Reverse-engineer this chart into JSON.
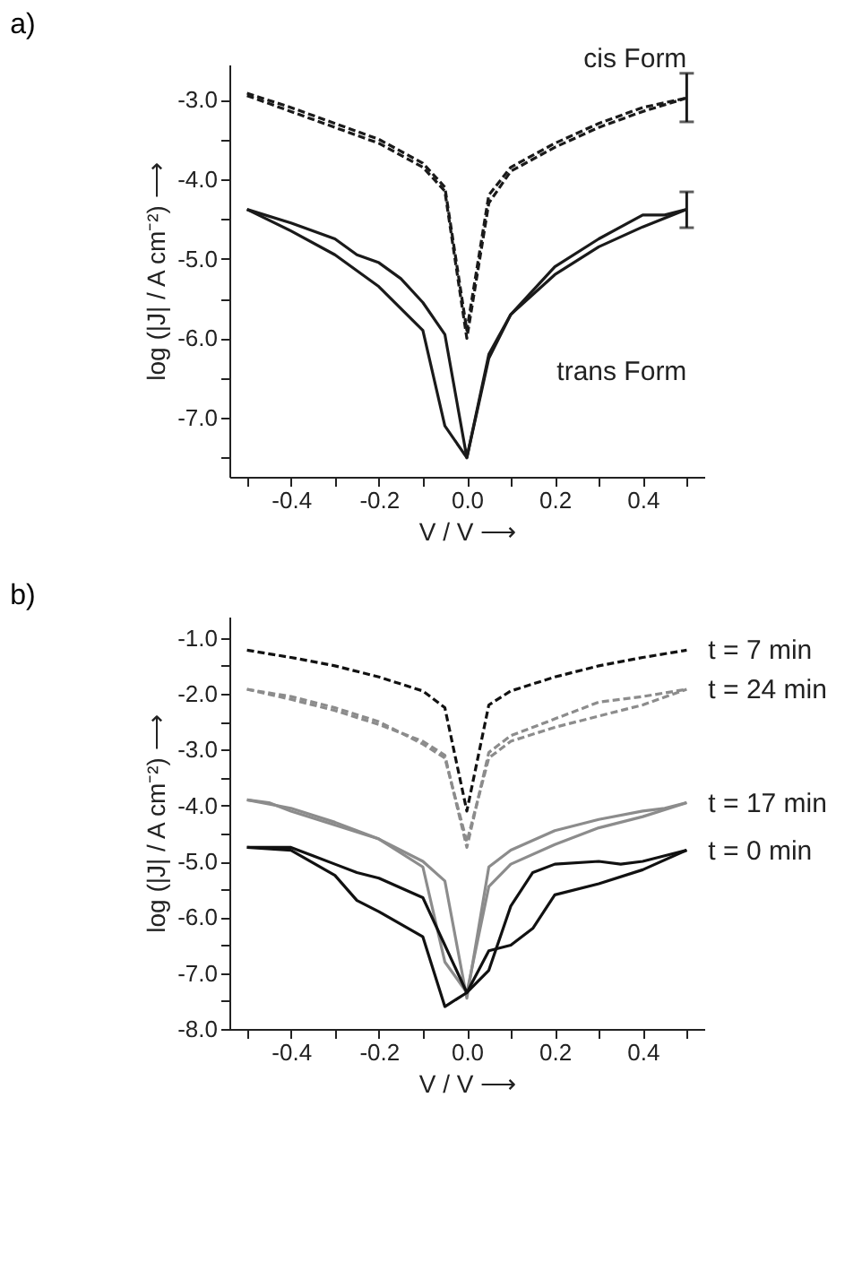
{
  "chart_data": [
    {
      "type": "line",
      "title": "a)",
      "xlabel": "V / V ⟶",
      "ylabel": "log (|J| / A cm⁻²) ⟶",
      "xlim": [
        -0.54,
        0.54
      ],
      "ylim": [
        -7.74,
        -2.56
      ],
      "grid": false,
      "marker": "none",
      "xticks": [
        {
          "value": -0.5,
          "label": null
        },
        -0.4,
        {
          "value": -0.3,
          "label": null
        },
        -0.2,
        {
          "value": -0.1,
          "label": null
        },
        {
          "value": 0,
          "label": "0.0"
        },
        {
          "value": 0.1,
          "label": null
        },
        0.2,
        {
          "value": 0.3,
          "label": null
        },
        0.4,
        {
          "value": 0.5,
          "label": null
        }
      ],
      "yticks": [
        {
          "value": -7.5,
          "label": null
        },
        {
          "value": -7.0,
          "label": "-7.0"
        },
        {
          "value": -6.5,
          "label": null
        },
        {
          "value": -6.0,
          "label": "-6.0"
        },
        {
          "value": -5.5,
          "label": null
        },
        {
          "value": -5.0,
          "label": "-5.0"
        },
        {
          "value": -4.5,
          "label": null
        },
        {
          "value": -4.0,
          "label": "-4.0"
        },
        {
          "value": -3.5,
          "label": null
        },
        {
          "value": -3.0,
          "label": "-3.0"
        }
      ],
      "series": [
        {
          "name": "cis Form",
          "color": "#1a1a1a",
          "line_style": "dashed",
          "x": [
            -0.5,
            -0.4,
            -0.3,
            -0.2,
            -0.1,
            -0.05,
            0,
            0.05,
            0.1,
            0.2,
            0.3,
            0.4,
            0.5
          ],
          "values": [
            -2.92,
            -3.1,
            -3.3,
            -3.5,
            -3.8,
            -4.1,
            -5.9,
            -4.2,
            -3.85,
            -3.55,
            -3.3,
            -3.1,
            -2.98
          ],
          "errors": [
            null,
            null,
            null,
            null,
            null,
            null,
            null,
            null,
            null,
            null,
            null,
            null,
            [
              -3.28,
              -2.67
            ]
          ]
        },
        {
          "color": "#1a1a1a",
          "line_style": "dashed",
          "x": [
            -0.5,
            -0.4,
            -0.3,
            -0.2,
            -0.1,
            -0.05,
            0,
            0.05,
            0.1,
            0.2,
            0.3,
            0.4,
            0.5
          ],
          "values": [
            -2.95,
            -3.15,
            -3.35,
            -3.55,
            -3.85,
            -4.15,
            -6.0,
            -4.3,
            -3.9,
            -3.6,
            -3.35,
            -3.15,
            -2.98
          ]
        },
        {
          "name": "trans Form",
          "color": "#1a1a1a",
          "line_style": "solid",
          "x": [
            -0.5,
            -0.4,
            -0.3,
            -0.25,
            -0.2,
            -0.15,
            -0.1,
            -0.05,
            0,
            0.05,
            0.1,
            0.2,
            0.3,
            0.4,
            0.45,
            0.5
          ],
          "values": [
            -4.38,
            -4.55,
            -4.75,
            -4.95,
            -5.05,
            -5.25,
            -5.55,
            -5.95,
            -7.5,
            -6.25,
            -5.7,
            -5.1,
            -4.75,
            -4.45,
            -4.45,
            -4.38
          ],
          "errors": [
            null,
            null,
            null,
            null,
            null,
            null,
            null,
            null,
            null,
            null,
            null,
            null,
            null,
            null,
            null,
            [
              -4.61,
              -4.16
            ]
          ]
        },
        {
          "color": "#1a1a1a",
          "line_style": "solid",
          "x": [
            -0.5,
            -0.4,
            -0.3,
            -0.2,
            -0.1,
            -0.05,
            0,
            0.05,
            0.1,
            0.2,
            0.3,
            0.4,
            0.5
          ],
          "values": [
            -4.38,
            -4.65,
            -4.95,
            -5.35,
            -5.9,
            -7.1,
            -7.5,
            -6.2,
            -5.7,
            -5.2,
            -4.85,
            -4.6,
            -4.38
          ]
        }
      ]
    },
    {
      "type": "line",
      "title": "b)",
      "xlabel": "V / V ⟶",
      "ylabel": "log (|J| / A cm⁻²) ⟶",
      "xlim": [
        -0.54,
        0.54
      ],
      "ylim": [
        -8.0,
        -0.62
      ],
      "grid": false,
      "marker": "none",
      "xticks": [
        {
          "value": -0.5,
          "label": null
        },
        -0.4,
        {
          "value": -0.3,
          "label": null
        },
        -0.2,
        {
          "value": -0.1,
          "label": null
        },
        {
          "value": 0,
          "label": "0.0"
        },
        {
          "value": 0.1,
          "label": null
        },
        0.2,
        {
          "value": 0.3,
          "label": null
        },
        0.4,
        {
          "value": 0.5,
          "label": null
        }
      ],
      "yticks": [
        {
          "value": -8.0,
          "label": "-8.0"
        },
        {
          "value": -7.5,
          "label": null
        },
        {
          "value": -7.0,
          "label": "-7.0"
        },
        {
          "value": -6.5,
          "label": null
        },
        {
          "value": -6.0,
          "label": "-6.0"
        },
        {
          "value": -5.5,
          "label": null
        },
        {
          "value": -5.0,
          "label": "-5.0"
        },
        {
          "value": -4.5,
          "label": null
        },
        {
          "value": -4.0,
          "label": "-4.0"
        },
        {
          "value": -3.5,
          "label": null
        },
        {
          "value": -3.0,
          "label": "-3.0"
        },
        {
          "value": -2.5,
          "label": null
        },
        {
          "value": -2.0,
          "label": "-2.0"
        },
        {
          "value": -1.5,
          "label": null
        },
        {
          "value": -1.0,
          "label": "-1.0"
        }
      ],
      "series": [
        {
          "name": "t = 7 min",
          "color": "#111111",
          "line_style": "dashed",
          "x": [
            -0.5,
            -0.4,
            -0.3,
            -0.2,
            -0.1,
            -0.05,
            0,
            0.05,
            0.1,
            0.2,
            0.3,
            0.4,
            0.5
          ],
          "values": [
            -1.22,
            -1.35,
            -1.5,
            -1.7,
            -1.95,
            -2.25,
            -4.1,
            -2.2,
            -1.95,
            -1.7,
            -1.5,
            -1.35,
            -1.22
          ]
        },
        {
          "name": "t = 24 min",
          "color": "#8c8c8c",
          "line_style": "dashed",
          "x": [
            -0.5,
            -0.4,
            -0.3,
            -0.2,
            -0.1,
            -0.05,
            0,
            0.05,
            0.1,
            0.2,
            0.3,
            0.4,
            0.5
          ],
          "values": [
            -1.92,
            -2.1,
            -2.3,
            -2.55,
            -2.85,
            -3.1,
            -4.75,
            -3.05,
            -2.75,
            -2.45,
            -2.15,
            -2.05,
            -1.92
          ]
        },
        {
          "color": "#8c8c8c",
          "line_style": "dashed",
          "x": [
            -0.5,
            -0.4,
            -0.3,
            -0.2,
            -0.1,
            -0.05,
            0,
            0.05,
            0.1,
            0.2,
            0.3,
            0.4,
            0.5
          ],
          "values": [
            -1.92,
            -2.05,
            -2.25,
            -2.5,
            -2.9,
            -3.15,
            -4.65,
            -3.15,
            -2.85,
            -2.6,
            -2.4,
            -2.2,
            -1.92
          ]
        },
        {
          "name": "t = 17 min",
          "color": "#8c8c8c",
          "line_style": "solid",
          "x": [
            -0.5,
            -0.45,
            -0.4,
            -0.3,
            -0.2,
            -0.1,
            -0.05,
            0,
            0.05,
            0.1,
            0.2,
            0.3,
            0.4,
            0.45,
            0.5
          ],
          "values": [
            -3.9,
            -3.95,
            -4.1,
            -4.35,
            -4.6,
            -5.0,
            -5.35,
            -7.45,
            -5.1,
            -4.8,
            -4.45,
            -4.25,
            -4.1,
            -4.05,
            -3.95
          ]
        },
        {
          "color": "#8c8c8c",
          "line_style": "solid",
          "x": [
            -0.5,
            -0.4,
            -0.3,
            -0.2,
            -0.1,
            -0.05,
            0,
            0.05,
            0.1,
            0.2,
            0.3,
            0.4,
            0.5
          ],
          "values": [
            -3.9,
            -4.05,
            -4.3,
            -4.6,
            -5.1,
            -6.8,
            -7.35,
            -5.45,
            -5.05,
            -4.7,
            -4.4,
            -4.2,
            -3.95
          ]
        },
        {
          "name": "t = 0 min",
          "color": "#111111",
          "line_style": "solid",
          "x": [
            -0.5,
            -0.4,
            -0.35,
            -0.3,
            -0.25,
            -0.2,
            -0.1,
            -0.05,
            0,
            0.05,
            0.1,
            0.15,
            0.2,
            0.3,
            0.35,
            0.4,
            0.45,
            0.5
          ],
          "values": [
            -4.75,
            -4.75,
            -4.9,
            -5.05,
            -5.2,
            -5.3,
            -5.65,
            -6.5,
            -7.35,
            -6.95,
            -5.8,
            -5.2,
            -5.05,
            -5.0,
            -5.05,
            -5.0,
            -4.9,
            -4.8
          ]
        },
        {
          "color": "#111111",
          "line_style": "solid",
          "x": [
            -0.5,
            -0.4,
            -0.3,
            -0.25,
            -0.2,
            -0.1,
            -0.05,
            0,
            0.05,
            0.1,
            0.15,
            0.2,
            0.3,
            0.4,
            0.5
          ],
          "values": [
            -4.75,
            -4.8,
            -5.25,
            -5.7,
            -5.9,
            -6.35,
            -7.6,
            -7.35,
            -6.6,
            -6.5,
            -6.2,
            -5.6,
            -5.4,
            -5.15,
            -4.8
          ]
        }
      ]
    }
  ]
}
